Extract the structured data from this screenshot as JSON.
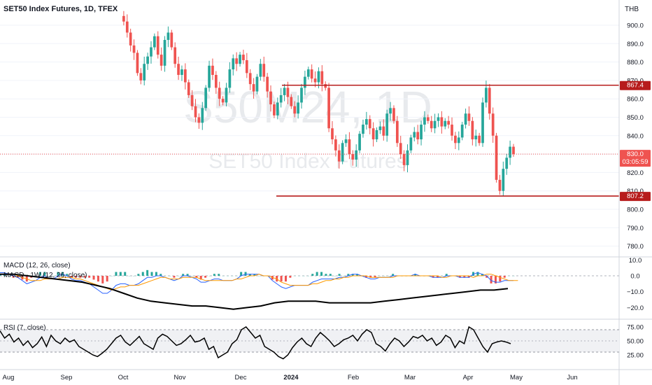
{
  "header": {
    "symbol_title": "SET50 Index Futures, 1D, TFEX"
  },
  "currency": "THB",
  "watermark": {
    "big": "S50M24, 1D",
    "sub": "SET50 Index Futures"
  },
  "price_axis": {
    "ticks": [
      "900.0",
      "890.0",
      "880.0",
      "870.0",
      "860.0",
      "850.0",
      "840.0",
      "830.0",
      "820.0",
      "810.0",
      "800.0",
      "790.0",
      "780.0"
    ]
  },
  "price_labels": {
    "resistance": "867.4",
    "support": "807.2",
    "last_price": "830.0",
    "countdown": "03:05:59"
  },
  "macd_panel": {
    "title1": "MACD (12, 26, close)",
    "title2": "MACD - 1W (12, 26, close)",
    "ticks": [
      "10.0",
      "0.0",
      "−10.0",
      "−20.0"
    ]
  },
  "rsi_panel": {
    "title": "RSI (7, close)",
    "ticks": [
      "75.00",
      "50.00",
      "25.00"
    ]
  },
  "time_axis": {
    "labels": [
      "Aug",
      "Sep",
      "Oct",
      "Nov",
      "Dec",
      "2024",
      "Feb",
      "Mar",
      "Apr",
      "May",
      "Jun"
    ]
  },
  "colors": {
    "up": "#26a69a",
    "down": "#ef5350",
    "level": "#b71c1c",
    "macd": "#2962ff",
    "signal": "#ff9800",
    "weekly": "#000000"
  },
  "chart_data": [
    {
      "type": "candlestick",
      "title": "SET50 Index Futures, 1D, TFEX",
      "ylim": [
        775,
        905
      ],
      "close_series_approx": [
        905,
        902,
        896,
        889,
        885,
        874,
        870,
        879,
        883,
        888,
        894,
        884,
        878,
        892,
        896,
        888,
        879,
        873,
        876,
        869,
        862,
        856,
        850,
        847,
        855,
        866,
        878,
        873,
        866,
        860,
        858,
        866,
        876,
        882,
        879,
        884,
        881,
        874,
        868,
        864,
        872,
        879,
        872,
        864,
        857,
        851,
        858,
        862,
        866,
        861,
        856,
        852,
        858,
        866,
        872,
        876,
        871,
        869,
        875,
        868,
        866,
        844,
        838,
        832,
        826,
        836,
        838,
        830,
        827,
        832,
        841,
        846,
        849,
        844,
        838,
        843,
        845,
        840,
        852,
        855,
        848,
        836,
        830,
        824,
        832,
        839,
        842,
        838,
        846,
        850,
        848,
        844,
        848,
        850,
        845,
        848,
        846,
        840,
        836,
        839,
        846,
        852,
        848,
        838,
        840,
        836,
        858,
        866,
        852,
        840,
        816,
        810,
        822,
        828,
        834,
        830
      ],
      "levels": {
        "resistance": 867.4,
        "support": 807.2,
        "last": 830.0
      }
    },
    {
      "type": "line",
      "title": "MACD (12, 26, close)",
      "ylim": [
        -25,
        12
      ],
      "series": [
        {
          "name": "MACD (12, 26, close)",
          "values": [
            2,
            2,
            1,
            0,
            -1,
            -3,
            -5,
            -4,
            -3,
            -1,
            0,
            -2,
            -2,
            0,
            1,
            0,
            -2,
            -3,
            -3,
            -4,
            -5,
            -7,
            -9,
            -11,
            -11,
            -9,
            -6,
            -5,
            -5,
            -6,
            -6,
            -5,
            -3,
            -1,
            -1,
            0,
            0,
            -1,
            -2,
            -3,
            -2,
            0,
            0,
            -1,
            -2,
            -4,
            -4,
            -3,
            -2,
            -2,
            -3,
            -3,
            -3,
            -2,
            0,
            1,
            1,
            1,
            1,
            0,
            0,
            -3,
            -5,
            -7,
            -8,
            -7,
            -6,
            -6,
            -6,
            -6,
            -4,
            -3,
            -2,
            -2,
            -2,
            -2,
            -1,
            -1,
            0,
            1,
            1,
            0,
            -1,
            -2,
            -2,
            -1,
            -1,
            -1,
            0,
            0,
            0,
            0,
            0,
            1,
            0,
            0,
            0,
            -1,
            -1,
            -1,
            0,
            0,
            0,
            -1,
            -1,
            -1,
            1,
            2,
            1,
            0,
            -3,
            -4,
            -4,
            -3,
            -3,
            -3
          ]
        },
        {
          "name": "Signal",
          "values": [
            1,
            1,
            1,
            1,
            0,
            -1,
            -2,
            -3,
            -3,
            -3,
            -2,
            -2,
            -2,
            -2,
            -1,
            -1,
            -1,
            -2,
            -2,
            -3,
            -4,
            -5,
            -6,
            -7,
            -8,
            -9,
            -8,
            -7,
            -7,
            -6,
            -6,
            -6,
            -5,
            -4,
            -3,
            -2,
            -1,
            -1,
            -2,
            -2,
            -2,
            -1,
            -1,
            -1,
            -1,
            -2,
            -3,
            -3,
            -3,
            -3,
            -3,
            -3,
            -3,
            -2,
            -2,
            -1,
            0,
            0,
            1,
            0,
            0,
            -1,
            -2,
            -4,
            -5,
            -6,
            -6,
            -6,
            -6,
            -6,
            -5,
            -5,
            -4,
            -3,
            -3,
            -2,
            -2,
            -1,
            -1,
            0,
            0,
            0,
            0,
            -1,
            -1,
            -1,
            -1,
            -1,
            -1,
            0,
            0,
            0,
            0,
            0,
            0,
            0,
            0,
            0,
            0,
            -1,
            -1,
            0,
            0,
            0,
            0,
            0,
            -1,
            0,
            0,
            1,
            1,
            0,
            -1,
            -2,
            -3,
            -3,
            -3
          ]
        },
        {
          "name": "MACD - 1W (12, 26, close)",
          "values": [
            1,
            1,
            0,
            -1,
            -2,
            -3,
            -4,
            -6,
            -8,
            -11,
            -14,
            -16,
            -17,
            -18,
            -19,
            -19,
            -20,
            -21,
            -20,
            -19,
            -17,
            -16,
            -16,
            -16,
            -17,
            -17,
            -17,
            -17,
            -16,
            -15,
            -14,
            -13,
            -12,
            -11,
            -10,
            -9,
            -9,
            -8
          ]
        }
      ]
    },
    {
      "type": "line",
      "title": "RSI (7, close)",
      "ylim": [
        0,
        100
      ],
      "bands": [
        30,
        70
      ],
      "series": [
        {
          "name": "RSI (7, close)",
          "values": [
            68,
            55,
            62,
            48,
            55,
            42,
            50,
            38,
            45,
            57,
            40,
            60,
            50,
            45,
            55,
            48,
            52,
            40,
            35,
            30,
            25,
            22,
            28,
            35,
            45,
            55,
            60,
            48,
            42,
            50,
            58,
            45,
            40,
            35,
            55,
            62,
            58,
            50,
            42,
            45,
            52,
            60,
            48,
            50,
            55,
            35,
            40,
            20,
            25,
            30,
            45,
            52,
            70,
            75,
            65,
            55,
            60,
            40,
            35,
            30,
            22,
            18,
            25,
            38,
            48,
            55,
            45,
            40,
            55,
            65,
            58,
            50,
            40,
            45,
            52,
            55,
            60,
            50,
            62,
            70,
            65,
            45,
            40,
            32,
            45,
            55,
            50,
            40,
            48,
            58,
            55,
            60,
            50,
            55,
            42,
            48,
            60,
            55,
            38,
            50,
            45,
            75,
            70,
            55,
            40,
            30,
            45,
            48,
            50,
            48,
            45
          ]
        }
      ]
    }
  ]
}
